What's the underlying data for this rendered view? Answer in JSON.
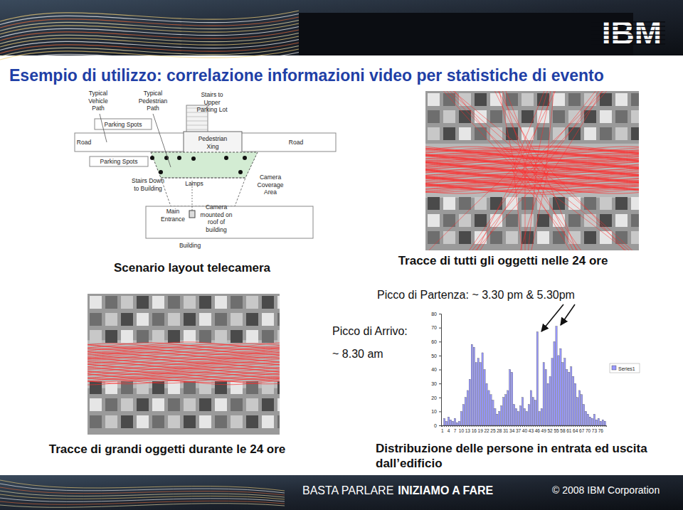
{
  "slide": {
    "title": "Esempio di utilizzo: correlazione informazioni video per statistiche di evento",
    "logo": "IBM",
    "footer": {
      "slogan_light": "BASTA PARLARE",
      "slogan_bold": "INIZIAMO A FARE",
      "copyright": "© 2008 IBM Corporation"
    }
  },
  "diagram": {
    "caption": "Scenario layout telecamera",
    "labels": {
      "vehicle_path": [
        "Typical",
        "Vehicle",
        "Path"
      ],
      "pedestrian_path": [
        "Typical",
        "Pedestrian",
        "Path"
      ],
      "stairs_upper": [
        "Stairs to",
        "Upper",
        "Parking Lot"
      ],
      "parking_upper": [
        "Parking Spots"
      ],
      "road_left": [
        "Road"
      ],
      "pedestrian_xing": [
        "Pedestrian",
        "Xing"
      ],
      "road_right": [
        "Road"
      ],
      "parking_lower": [
        "Parking Spots"
      ],
      "stairs_down": [
        "Stairs Down",
        "to Building"
      ],
      "lamps": [
        "Lamps"
      ],
      "camera_area": [
        "Camera",
        "Coverage",
        "Area"
      ],
      "main_entrance": [
        "Main",
        "Entrance"
      ],
      "camera_roof": [
        "Camera",
        "mounted on",
        "roof of",
        "building"
      ],
      "building": [
        "Building"
      ]
    }
  },
  "photos": [
    {
      "caption": "Tracce di tutti gli oggetti nelle 24 ore"
    },
    {
      "caption": "Tracce di grandi oggetti durante le 24 ore"
    }
  ],
  "chart_data": {
    "type": "bar",
    "title": "Distribuzione delle persone in entrata ed uscita dall’edificio",
    "annotations": [
      "Picco di Partenza: ~ 3.30 pm & 5.30pm",
      "Picco di Arrivo:",
      "~ 8.30 am"
    ],
    "categories": [
      "1",
      null,
      null,
      "4",
      null,
      null,
      "7",
      null,
      null,
      "10",
      null,
      null,
      "13",
      null,
      null,
      "16",
      null,
      null,
      "19",
      null,
      null,
      "22",
      null,
      null,
      "25",
      null,
      null,
      "28",
      null,
      null,
      "31",
      null,
      null,
      "34",
      null,
      null,
      "37",
      null,
      null,
      "40",
      null,
      null,
      "43",
      null,
      null,
      "46",
      null,
      null,
      "49",
      null,
      null,
      "52",
      null,
      null,
      "55",
      null,
      null,
      "58",
      null,
      null,
      "61",
      null,
      null,
      "64",
      null,
      null,
      "67",
      null,
      null,
      "70",
      null,
      null,
      "73",
      null,
      null,
      "76",
      null,
      null
    ],
    "series": [
      {
        "name": "Series1",
        "color": "#9999ff",
        "values": [
          0,
          5,
          3,
          6,
          4,
          3,
          5,
          2,
          3,
          10,
          15,
          20,
          25,
          33,
          58,
          56,
          45,
          48,
          45,
          52,
          40,
          30,
          25,
          22,
          18,
          12,
          8,
          10,
          14,
          20,
          22,
          25,
          40,
          38,
          15,
          12,
          10,
          14,
          20,
          12,
          10,
          15,
          25,
          20,
          18,
          67,
          10,
          12,
          45,
          40,
          30,
          35,
          48,
          60,
          71,
          50,
          55,
          45,
          48,
          40,
          38,
          42,
          35,
          30,
          20,
          25,
          22,
          15,
          10,
          8,
          6,
          5,
          8,
          4,
          5,
          3,
          4,
          3
        ]
      }
    ],
    "ylim": [
      0,
      80
    ],
    "yticks": [
      0,
      10,
      20,
      30,
      40,
      50,
      60,
      70,
      80
    ],
    "grid": false,
    "legend": "right"
  }
}
